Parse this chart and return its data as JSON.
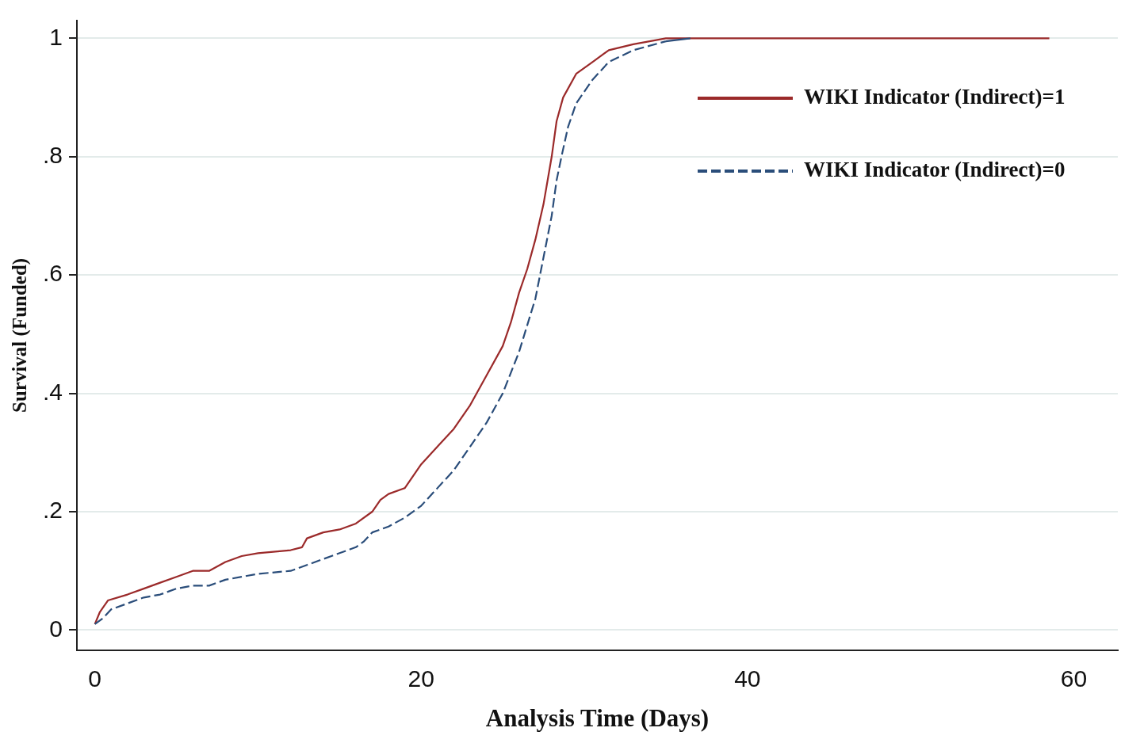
{
  "chart_data": {
    "type": "line",
    "xlabel": "Analysis Time (Days)",
    "ylabel": "Survival (Funded)",
    "xlim": [
      -1.1,
      62.7
    ],
    "xticks": [
      0,
      20,
      40,
      60
    ],
    "ylim": [
      -0.034,
      1.03
    ],
    "yticks": [
      0,
      {
        "value": 0.2,
        "label": ".2"
      },
      {
        "value": 0.4,
        "label": ".4"
      },
      {
        "value": 0.6,
        "label": ".6"
      },
      {
        "value": 0.8,
        "label": ".8"
      },
      1
    ],
    "grid": "y",
    "legend": "top right",
    "marker": "none",
    "series": [
      {
        "name": "WIKI Indicator (Indirect)=1",
        "color": "#9b2a2a",
        "line_style": "solid",
        "x": [
          0,
          0.3,
          0.8,
          2,
          3,
          4,
          5,
          6,
          7,
          8,
          9,
          10,
          12,
          12.7,
          13,
          14,
          15,
          16,
          17,
          17.5,
          18,
          19,
          19.5,
          20,
          21,
          22,
          23,
          24,
          25,
          25.5,
          26,
          26.5,
          27,
          27.5,
          28,
          28.3,
          28.7,
          29.5,
          30.5,
          31.5,
          33,
          35,
          58.5
        ],
        "values": [
          0.01,
          0.03,
          0.05,
          0.06,
          0.07,
          0.08,
          0.09,
          0.1,
          0.1,
          0.115,
          0.125,
          0.13,
          0.135,
          0.14,
          0.155,
          0.165,
          0.17,
          0.18,
          0.2,
          0.22,
          0.23,
          0.24,
          0.26,
          0.28,
          0.31,
          0.34,
          0.38,
          0.43,
          0.48,
          0.52,
          0.57,
          0.61,
          0.66,
          0.72,
          0.8,
          0.86,
          0.9,
          0.94,
          0.96,
          0.98,
          0.99,
          1,
          1
        ]
      },
      {
        "name": "WIKI Indicator (Indirect)=0",
        "color": "#2a4d7a",
        "line_style": "dashed",
        "x": [
          0,
          0.5,
          1,
          2,
          3,
          4,
          5,
          6,
          7,
          8,
          9,
          10,
          12,
          13,
          14,
          15,
          16,
          16.5,
          17,
          18,
          19,
          20,
          21,
          22,
          23,
          24,
          25,
          26,
          27,
          27.5,
          28,
          28.3,
          28.6,
          29,
          29.5,
          30.5,
          31.5,
          33,
          35,
          36.5
        ],
        "values": [
          0.01,
          0.02,
          0.035,
          0.045,
          0.055,
          0.06,
          0.07,
          0.075,
          0.075,
          0.085,
          0.09,
          0.095,
          0.1,
          0.11,
          0.12,
          0.13,
          0.14,
          0.15,
          0.165,
          0.175,
          0.19,
          0.21,
          0.24,
          0.27,
          0.31,
          0.35,
          0.4,
          0.47,
          0.56,
          0.63,
          0.7,
          0.76,
          0.8,
          0.85,
          0.89,
          0.93,
          0.96,
          0.98,
          0.995,
          1
        ]
      }
    ]
  }
}
